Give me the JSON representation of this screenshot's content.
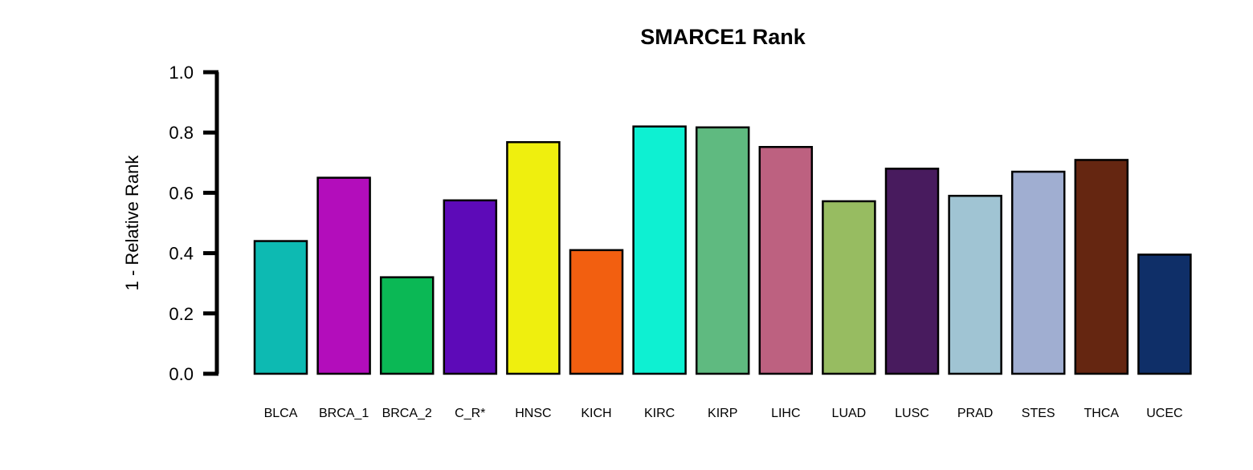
{
  "chart_data": {
    "type": "bar",
    "title": "SMARCE1 Rank",
    "xlabel": "",
    "ylabel": "1 - Relative Rank",
    "ylim": [
      0,
      1
    ],
    "yticks": [
      "0.0",
      "0.2",
      "0.4",
      "0.6",
      "0.8",
      "1.0"
    ],
    "grid": false,
    "categories": [
      "BLCA",
      "BRCA_1",
      "BRCA_2",
      "C_R*",
      "HNSC",
      "KICH",
      "KIRC",
      "KIRP",
      "LIHC",
      "LUAD",
      "LUSC",
      "PRAD",
      "STES",
      "THCA",
      "UCEC"
    ],
    "values": [
      0.44,
      0.65,
      0.32,
      0.575,
      0.768,
      0.41,
      0.82,
      0.817,
      0.752,
      0.572,
      0.68,
      0.59,
      0.67,
      0.709,
      0.395
    ],
    "colors": [
      "#0DBAB2",
      "#B30DBB",
      "#0BB855",
      "#5D0AB8",
      "#EFEF0E",
      "#F25F10",
      "#0EF0D2",
      "#5FBA80",
      "#BD6180",
      "#97BC61",
      "#481B5E",
      "#A0C4D3",
      "#A0AED1",
      "#652611",
      "#0F2F68"
    ]
  }
}
